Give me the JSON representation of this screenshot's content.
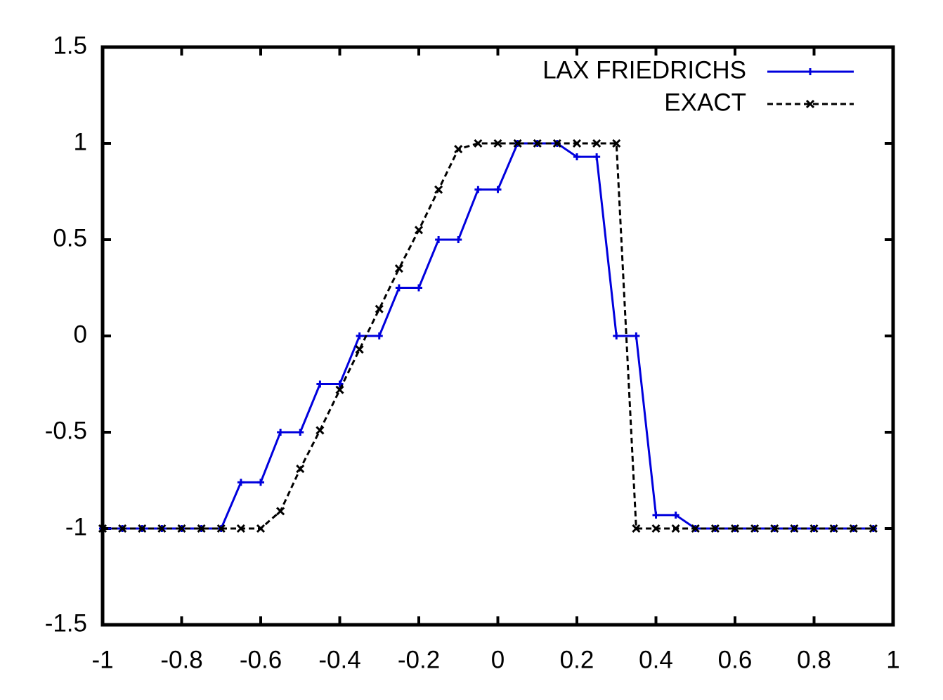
{
  "chart_data": {
    "type": "line",
    "x": [
      -1,
      -0.95,
      -0.9,
      -0.85,
      -0.8,
      -0.75,
      -0.7,
      -0.65,
      -0.6,
      -0.55,
      -0.5,
      -0.45,
      -0.4,
      -0.35,
      -0.3,
      -0.25,
      -0.2,
      -0.15,
      -0.1,
      -0.05,
      0,
      0.05,
      0.1,
      0.15,
      0.2,
      0.25,
      0.3,
      0.35,
      0.4,
      0.45,
      0.5,
      0.55,
      0.6,
      0.65,
      0.7,
      0.75,
      0.8,
      0.85,
      0.9,
      0.95
    ],
    "series": [
      {
        "name": "LAX FRIEDRICHS",
        "color": "#0000dd",
        "marker": "plus",
        "dashed": false,
        "values": [
          -1,
          -1,
          -1,
          -1,
          -1,
          -1,
          -1,
          -0.76,
          -0.76,
          -0.5,
          -0.5,
          -0.25,
          -0.25,
          0,
          0,
          0.25,
          0.25,
          0.5,
          0.5,
          0.76,
          0.76,
          1,
          1,
          1,
          0.93,
          0.93,
          0,
          0,
          -0.93,
          -0.93,
          -1,
          -1,
          -1,
          -1,
          -1,
          -1,
          -1,
          -1,
          -1,
          -1
        ]
      },
      {
        "name": "EXACT",
        "color": "#000000",
        "marker": "cross",
        "dashed": true,
        "values": [
          -1,
          -1,
          -1,
          -1,
          -1,
          -1,
          -1,
          -1,
          -1,
          -0.91,
          -0.69,
          -0.49,
          -0.28,
          -0.07,
          0.14,
          0.35,
          0.55,
          0.76,
          0.97,
          1,
          1,
          1,
          1,
          1,
          1,
          1,
          1,
          -1,
          -1,
          -1,
          -1,
          -1,
          -1,
          -1,
          -1,
          -1,
          -1,
          -1,
          -1,
          -1
        ]
      }
    ],
    "xlim": [
      -1,
      1
    ],
    "xticks": [
      -1,
      -0.8,
      -0.6,
      -0.4,
      -0.2,
      0,
      0.2,
      0.4,
      0.6,
      0.8,
      1
    ],
    "ylim": [
      -1.5,
      1.5
    ],
    "yticks": [
      -1.5,
      -1,
      -0.5,
      0,
      0.5,
      1,
      1.5
    ],
    "grid": false,
    "legend": "top-right"
  }
}
